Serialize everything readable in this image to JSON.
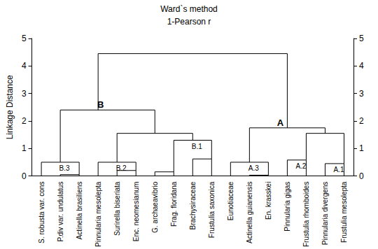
{
  "chart_data": {
    "type": "dendrogram",
    "title": "Ward`s method",
    "subtitle": "1-Pearson r",
    "y_label": "Linkage Distance",
    "ylim": [
      0,
      5
    ],
    "yticks": [
      0,
      1,
      2,
      3,
      4,
      5
    ],
    "color": "#000000",
    "tree": {
      "height": 4.45,
      "children": [
        {
          "height": 2.4,
          "label": "B",
          "children": [
            {
              "height": 0.5,
              "label": "B.3",
              "children": [
                {
                  "name": "S. robusta var. cons"
                },
                {
                  "height": 0.05,
                  "children": [
                    {
                      "name": "P.div var. undulatus"
                    },
                    {
                      "name": "Actinella brasiliens"
                    }
                  ]
                }
              ]
            },
            {
              "height": 1.55,
              "children": [
                {
                  "height": 0.5,
                  "label": "B.2",
                  "children": [
                    {
                      "name": "Pinnularia mesolepta"
                    },
                    {
                      "height": 0.2,
                      "children": [
                        {
                          "name": "Surirella biseriata"
                        },
                        {
                          "name": "Enc. neomesianum"
                        }
                      ]
                    }
                  ]
                },
                {
                  "height": 1.3,
                  "label": "B.1",
                  "children": [
                    {
                      "height": 0.15,
                      "children": [
                        {
                          "name": "G. archaeavibrio"
                        },
                        {
                          "name": "Frag. floridana"
                        }
                      ]
                    },
                    {
                      "height": 0.62,
                      "children": [
                        {
                          "name": "Brachysiraceae"
                        },
                        {
                          "name": "Frustulia saxonica"
                        }
                      ]
                    }
                  ]
                }
              ]
            }
          ]
        },
        {
          "height": 1.75,
          "label": "A",
          "children": [
            {
              "height": 0.5,
              "label": "A.3",
              "children": [
                {
                  "name": "Eunotiaceae"
                },
                {
                  "height": 0.03,
                  "children": [
                    {
                      "name": "Actinella guianensis"
                    },
                    {
                      "name": "En. krasskei"
                    }
                  ]
                }
              ]
            },
            {
              "height": 1.55,
              "children": [
                {
                  "height": 0.58,
                  "label": "A.2",
                  "children": [
                    {
                      "name": "Pinnularia gigas"
                    },
                    {
                      "name": "Frustulia rhomboides"
                    }
                  ]
                },
                {
                  "height": 0.45,
                  "label": "A.1",
                  "children": [
                    {
                      "name": "Pinnularia divergens"
                    },
                    {
                      "name": "Frustulia mesolepta"
                    }
                  ]
                }
              ]
            }
          ]
        }
      ]
    }
  }
}
